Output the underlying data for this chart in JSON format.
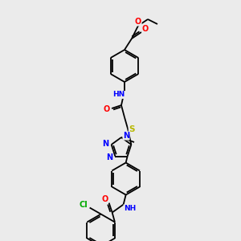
{
  "background_color": "#ebebeb",
  "bond_color": "#000000",
  "atom_colors": {
    "O": "#ff0000",
    "N": "#0000ff",
    "S": "#b8b800",
    "Cl": "#00aa00",
    "C": "#000000",
    "H": "#000000"
  },
  "figsize": [
    3.0,
    3.0
  ],
  "dpi": 100,
  "bond_lw": 1.3
}
